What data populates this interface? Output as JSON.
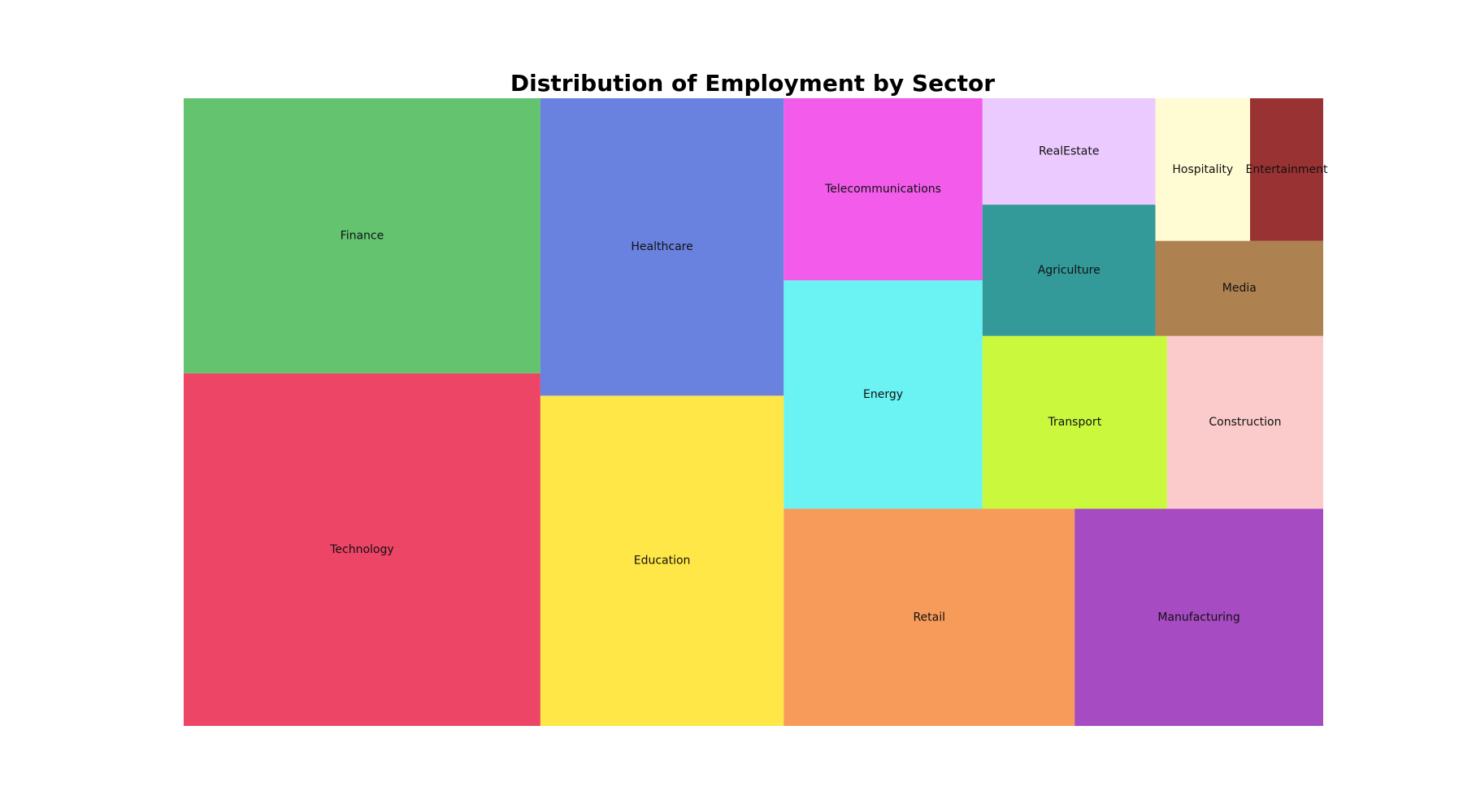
{
  "chart_data": {
    "type": "treemap",
    "title": "Distribution of Employment by Sector",
    "legend": "none",
    "grid": false,
    "sectors": [
      {
        "label": "Technology",
        "value": 20.5,
        "color": "#e8173f"
      },
      {
        "label": "Finance",
        "value": 16.0,
        "color": "#3cb44b"
      },
      {
        "label": "Education",
        "value": 13.1,
        "color": "#ffe119"
      },
      {
        "label": "Healthcare",
        "value": 11.8,
        "color": "#4363d8"
      },
      {
        "label": "Retail",
        "value": 10.3,
        "color": "#f58231"
      },
      {
        "label": "Manufacturing",
        "value": 8.8,
        "color": "#911eb4"
      },
      {
        "label": "Energy",
        "value": 7.4,
        "color": "#46f0f0"
      },
      {
        "label": "Telecommunications",
        "value": 5.9,
        "color": "#f032e6"
      },
      {
        "label": "Transport",
        "value": 5.2,
        "color": "#bcf60c"
      },
      {
        "label": "Construction",
        "value": 4.4,
        "color": "#fabebe"
      },
      {
        "label": "Agriculture",
        "value": 3.7,
        "color": "#008080"
      },
      {
        "label": "RealEstate",
        "value": 3.0,
        "color": "#e6beff"
      },
      {
        "label": "Media",
        "value": 2.6,
        "color": "#9a6324"
      },
      {
        "label": "Hospitality",
        "value": 2.2,
        "color": "#fffac8"
      },
      {
        "label": "Entertainment",
        "value": 1.7,
        "color": "#800000"
      }
    ]
  }
}
